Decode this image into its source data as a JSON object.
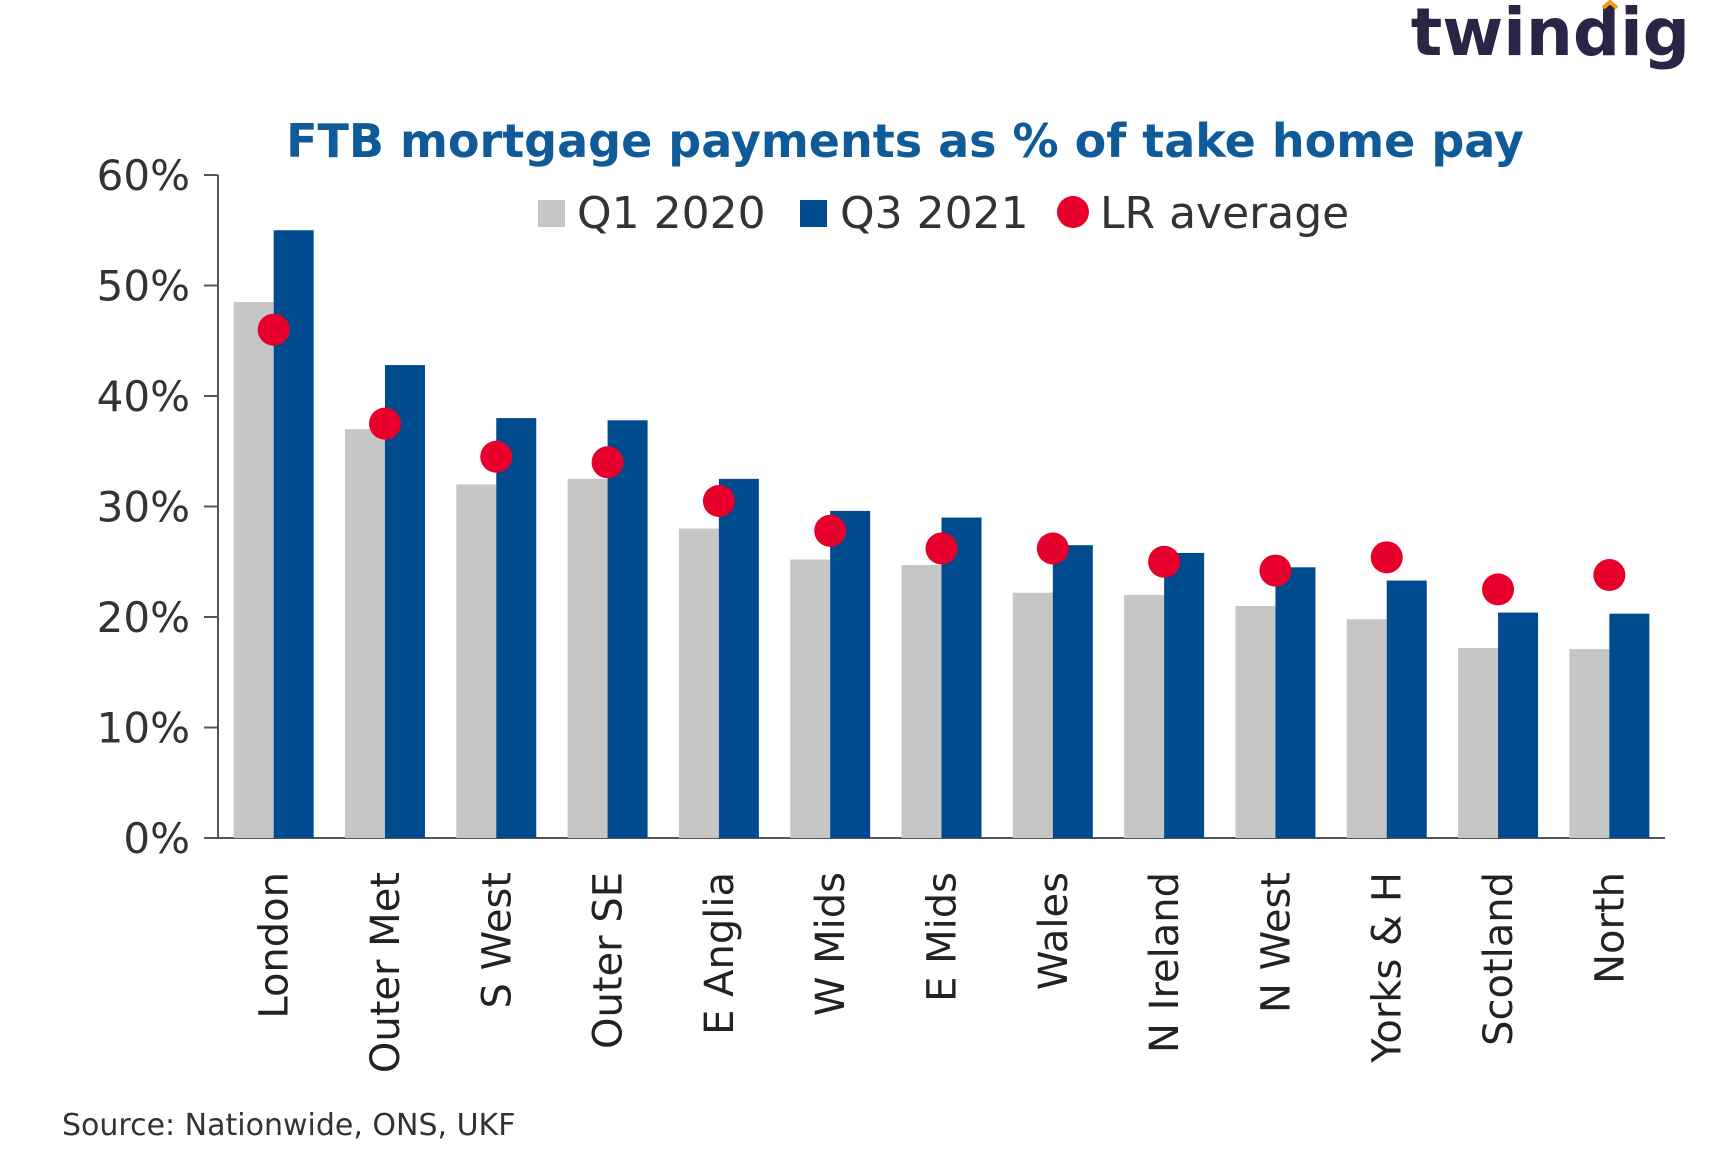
{
  "brand": {
    "logo_text": "twindig"
  },
  "source_note": "Source: Nationwide, ONS, UKF",
  "colors": {
    "q1_2020": "#c6c6c6",
    "q3_2021": "#004b8d",
    "lr_average": "#e8002d",
    "title": "#0f5a98",
    "axis": "#555555",
    "brand_dot": "#f39c12"
  },
  "chart_data": {
    "type": "bar",
    "title": "FTB mortgage payments as % of take home pay",
    "xlabel": "",
    "ylabel": "",
    "ylim": [
      0,
      60
    ],
    "yticks": [
      "0%",
      "10%",
      "20%",
      "30%",
      "40%",
      "50%",
      "60%"
    ],
    "grid": false,
    "legend_position": "top",
    "categories": [
      "London",
      "Outer Met",
      "S West",
      "Outer SE",
      "E Anglia",
      "W Mids",
      "E Mids",
      "Wales",
      "N Ireland",
      "N West",
      "Yorks & H",
      "Scotland",
      "North"
    ],
    "series": [
      {
        "name": "Q1 2020",
        "kind": "bar",
        "values": [
          48.5,
          37,
          32,
          32.5,
          28,
          25.2,
          24.7,
          22.2,
          22,
          21,
          19.8,
          17.2,
          17.1
        ]
      },
      {
        "name": "Q3 2021",
        "kind": "bar",
        "values": [
          55,
          42.8,
          38,
          37.8,
          32.5,
          29.6,
          29,
          26.5,
          25.8,
          24.5,
          23.3,
          20.4,
          20.3
        ]
      },
      {
        "name": "LR average",
        "kind": "point",
        "values": [
          46,
          37.5,
          34.5,
          34,
          30.5,
          27.8,
          26.2,
          26.2,
          25,
          24.2,
          25.4,
          22.5,
          23.8
        ]
      }
    ]
  }
}
